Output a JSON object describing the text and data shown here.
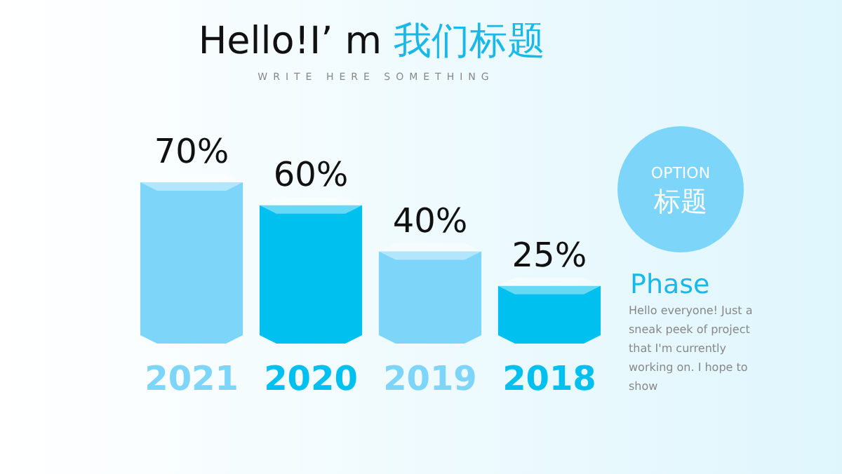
{
  "chart_data": {
    "type": "bar",
    "title": "Hello!I’ m 我们标题",
    "subtitle": "WRITE HERE SOMETHING",
    "categories": [
      "2021",
      "2020",
      "2019",
      "2018"
    ],
    "values": [
      70,
      60,
      40,
      25
    ],
    "value_labels": [
      "70%",
      "60%",
      "40%",
      "25%"
    ],
    "colors": [
      "#7dd6fa",
      "#00c0ef",
      "#7dd6fa",
      "#00c0ef"
    ],
    "annotations": [
      "OPTION",
      "标题",
      "Phase",
      "Hello everyone! Just a sneak peek of project that I'm currently working on. I hope to show"
    ]
  }
}
